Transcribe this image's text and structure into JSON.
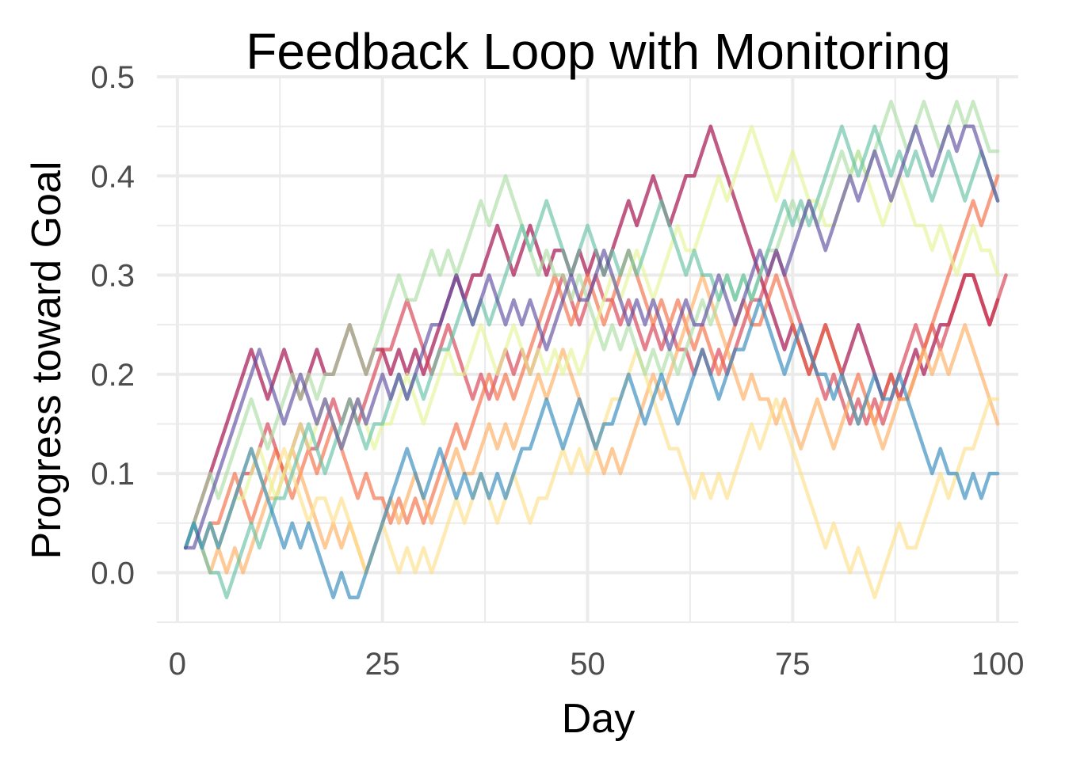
{
  "chart_data": {
    "type": "line",
    "title": "Feedback Loop with Monitoring",
    "xlabel": "Day",
    "ylabel": "Progress toward Goal",
    "xlim": [
      -2.5,
      102.5
    ],
    "ylim": [
      -0.05,
      0.5
    ],
    "x_ticks": [
      0,
      25,
      50,
      75,
      100
    ],
    "x_tick_labels": [
      "0",
      "25",
      "50",
      "75",
      "100"
    ],
    "y_ticks": [
      0.0,
      0.1,
      0.2,
      0.3,
      0.4,
      0.5
    ],
    "y_tick_labels": [
      "0.0",
      "0.1",
      "0.2",
      "0.3",
      "0.4",
      "0.5"
    ],
    "grid": true,
    "legend": "none",
    "step": 0.025,
    "series": [
      {
        "color": "#9E0142",
        "x": [
          1,
          8,
          20,
          26,
          38,
          48,
          57,
          64,
          74,
          82,
          88,
          96,
          99,
          100
        ],
        "y": [
          0.025,
          0.2,
          0.225,
          0.2,
          0.325,
          0.3,
          0.375,
          0.425,
          0.225,
          0.225,
          0.175,
          0.3,
          0.25,
          0.275
        ]
      },
      {
        "color": "#D53E4F",
        "x": [
          1,
          10,
          18,
          27,
          38,
          46,
          54,
          63,
          72,
          82,
          88,
          96,
          99,
          100
        ],
        "y": [
          0.025,
          0.125,
          0.15,
          0.25,
          0.175,
          0.275,
          0.25,
          0.2,
          0.3,
          0.15,
          0.2,
          0.3,
          0.25,
          0.3
        ]
      },
      {
        "color": "#F46D43",
        "x": [
          1,
          6,
          18,
          26,
          36,
          45,
          54,
          63,
          72,
          82,
          90,
          96,
          99,
          100
        ],
        "y": [
          0.025,
          0.075,
          0.125,
          0.05,
          0.15,
          0.275,
          0.3,
          0.225,
          0.275,
          0.175,
          0.2,
          0.35,
          0.375,
          0.4
        ]
      },
      {
        "color": "#FDAE61",
        "x": [
          1,
          4,
          13,
          20,
          28,
          37,
          46,
          54,
          63,
          73,
          83,
          90,
          96,
          99,
          100
        ],
        "y": [
          0.025,
          0.0,
          0.1,
          0.025,
          0.075,
          0.125,
          0.2,
          0.1,
          0.275,
          0.15,
          0.15,
          0.2,
          0.25,
          0.175,
          0.15
        ]
      },
      {
        "color": "#FEE08B",
        "x": [
          1,
          8,
          19,
          27,
          36,
          46,
          55,
          63,
          72,
          82,
          91,
          99,
          100
        ],
        "y": [
          0.025,
          0.1,
          0.05,
          0.0,
          0.075,
          0.1,
          0.2,
          0.075,
          0.15,
          0.0,
          0.05,
          0.175,
          0.175
        ]
      },
      {
        "color": "#E6F598",
        "x": [
          1,
          9,
          17,
          27,
          36,
          45,
          55,
          64,
          69,
          79,
          82,
          92,
          99,
          100
        ],
        "y": [
          0.025,
          0.1,
          0.15,
          0.175,
          0.225,
          0.2,
          0.3,
          0.35,
          0.425,
          0.35,
          0.4,
          0.325,
          0.325,
          0.3
        ]
      },
      {
        "color": "#ABDDA4",
        "x": [
          1,
          8,
          20,
          30,
          39,
          48,
          57,
          66,
          74,
          86,
          97,
          99,
          100
        ],
        "y": [
          0.025,
          0.15,
          0.225,
          0.3,
          0.375,
          0.275,
          0.2,
          0.275,
          0.35,
          0.45,
          0.475,
          0.425,
          0.425
        ]
      },
      {
        "color": "#66C2A5",
        "x": [
          1,
          6,
          15,
          26,
          34,
          44,
          52,
          58,
          66,
          80,
          89,
          97,
          100
        ],
        "y": [
          0.025,
          -0.025,
          0.125,
          0.175,
          0.25,
          0.35,
          0.3,
          0.35,
          0.275,
          0.425,
          0.4,
          0.4,
          0.375
        ]
      },
      {
        "color": "#3288BD",
        "x": [
          1,
          8,
          15,
          21,
          27,
          36,
          44,
          54,
          63,
          70,
          80,
          87,
          96,
          99,
          100
        ],
        "y": [
          0.025,
          0.1,
          0.025,
          -0.025,
          0.1,
          0.075,
          0.15,
          0.175,
          0.2,
          0.25,
          0.175,
          0.175,
          0.075,
          0.1,
          0.1
        ]
      },
      {
        "color": "#5E4FA2",
        "x": [
          1,
          9,
          17,
          24,
          33,
          42,
          51,
          57,
          65,
          76,
          84,
          96,
          99,
          100
        ],
        "y": [
          0.025,
          0.2,
          0.15,
          0.175,
          0.275,
          0.25,
          0.3,
          0.25,
          0.275,
          0.35,
          0.4,
          0.45,
          0.4,
          0.375
        ]
      }
    ]
  }
}
